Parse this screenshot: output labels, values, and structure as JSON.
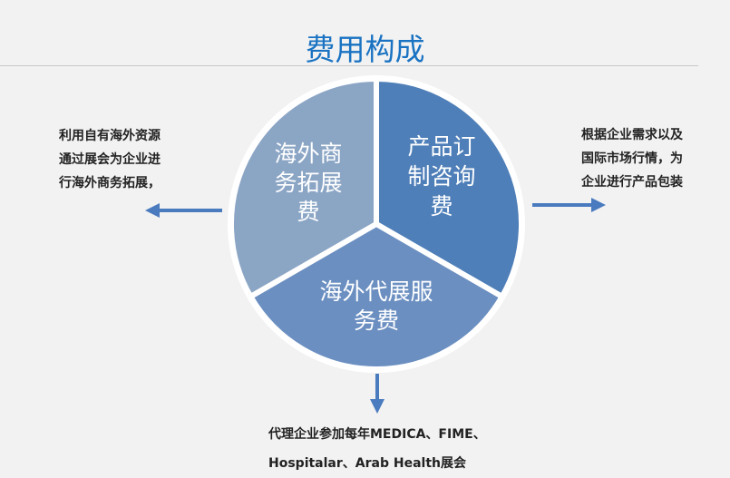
{
  "title": "费用构成",
  "colors": {
    "title": "#1a73c2",
    "slice_left": "#8ba5c5",
    "slice_right": "#4f7fb8",
    "slice_bottom": "#6b8fc1",
    "arrow": "#4a7bbf"
  },
  "slices": [
    {
      "id": "left",
      "lines": [
        "海外商",
        "务拓展",
        "费"
      ]
    },
    {
      "id": "right",
      "lines": [
        "产品订",
        "制咨询",
        "费"
      ]
    },
    {
      "id": "bottom",
      "lines": [
        "海外代展服",
        "务费"
      ]
    }
  ],
  "notes": {
    "left": [
      "利用自有海外资源",
      "通过展会为企业进",
      "行海外商务拓展，"
    ],
    "right": [
      "根据企业需求以及",
      "国际市场行情，为",
      "企业进行产品包装"
    ],
    "bottom": [
      "代理企业参加每年MEDICA、FIME、",
      "Hospitalar、Arab Health展会"
    ]
  }
}
